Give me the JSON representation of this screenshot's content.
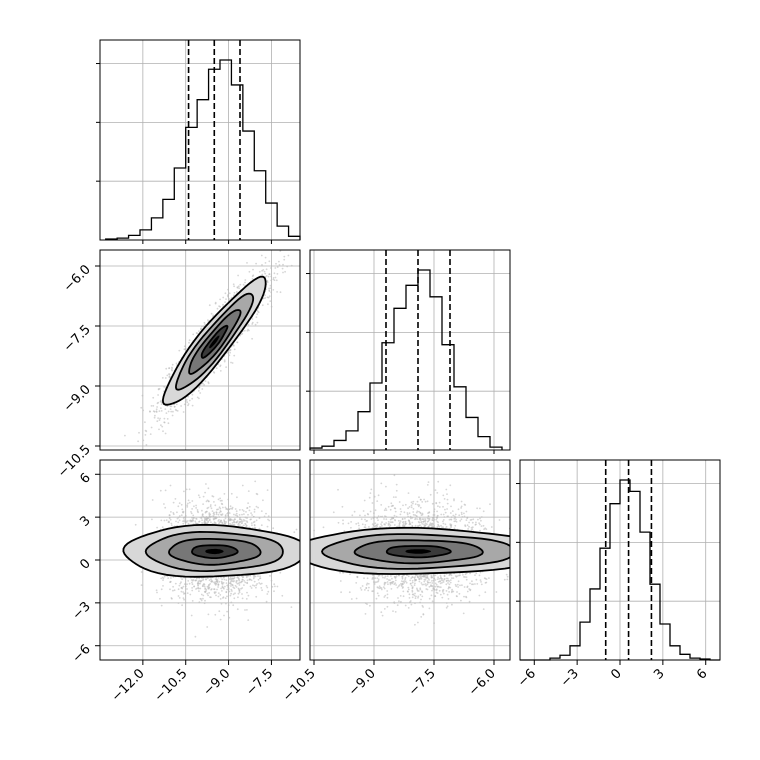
{
  "chart_data": {
    "type": "corner",
    "title": "",
    "params": [
      {
        "index": 0,
        "range": [
          -13.5,
          -6.5
        ],
        "ticks": [
          -12.0,
          -10.5,
          -9.0,
          -7.5
        ],
        "tick_labels": [
          "−12.0",
          "−10.5",
          "−9.0",
          "−7.5"
        ],
        "quantiles": [
          -10.4,
          -9.5,
          -8.6
        ]
      },
      {
        "index": 1,
        "range": [
          -10.6,
          -5.6
        ],
        "ticks": [
          -10.5,
          -9.0,
          -7.5,
          -6.0
        ],
        "tick_labels": [
          "−10.5",
          "−9.0",
          "−7.5",
          "−6.0"
        ],
        "quantiles": [
          -8.7,
          -7.9,
          -7.1
        ]
      },
      {
        "index": 2,
        "range": [
          -7,
          7
        ],
        "ticks": [
          -6,
          -3,
          0,
          3,
          6
        ],
        "tick_labels": [
          "−6",
          "−3",
          "0",
          "3",
          "6"
        ],
        "quantiles": [
          -1.0,
          0.6,
          2.2
        ]
      }
    ],
    "histograms": [
      {
        "param": 0,
        "bins": [
          -13.3,
          -12.9,
          -12.5,
          -12.1,
          -11.7,
          -11.3,
          -10.9,
          -10.5,
          -10.1,
          -9.7,
          -9.3,
          -8.9,
          -8.5,
          -8.1,
          -7.7,
          -7.3,
          -6.9,
          -6.5
        ],
        "counts": [
          1,
          2,
          5,
          11,
          24,
          44,
          78,
          122,
          152,
          185,
          195,
          168,
          118,
          75,
          40,
          15,
          4
        ]
      },
      {
        "param": 1,
        "bins": [
          -10.6,
          -10.3,
          -10.0,
          -9.7,
          -9.4,
          -9.1,
          -8.8,
          -8.5,
          -8.2,
          -7.9,
          -7.6,
          -7.3,
          -7.0,
          -6.7,
          -6.4,
          -6.1,
          -5.8
        ],
        "counts": [
          2,
          4,
          10,
          20,
          40,
          70,
          112,
          148,
          172,
          188,
          160,
          110,
          66,
          34,
          14,
          3
        ]
      },
      {
        "param": 2,
        "bins": [
          -7.0,
          -6.3,
          -5.6,
          -4.9,
          -4.2,
          -3.5,
          -2.8,
          -2.1,
          -1.4,
          -0.7,
          0.0,
          0.7,
          1.4,
          2.1,
          2.8,
          3.5,
          4.2,
          4.9,
          5.6,
          6.3,
          7.0
        ],
        "counts": [
          0,
          0,
          0,
          2,
          5,
          15,
          40,
          75,
          118,
          165,
          190,
          178,
          135,
          80,
          38,
          15,
          6,
          2,
          1,
          0
        ]
      }
    ],
    "pairs": [
      {
        "x_param": 0,
        "y_param": 1,
        "mean": [
          -9.5,
          -7.9
        ],
        "std": [
          0.9,
          0.8
        ],
        "correlation": 0.92,
        "contour_levels_sigma": [
          0.5,
          1.0,
          1.5,
          2.0
        ]
      },
      {
        "x_param": 0,
        "y_param": 2,
        "mean": [
          -9.5,
          0.6
        ],
        "std": [
          0.9,
          1.6
        ],
        "correlation": 0.0,
        "contour_levels_sigma": [
          0.5,
          1.0,
          1.5,
          2.0
        ]
      },
      {
        "x_param": 1,
        "y_param": 2,
        "mean": [
          -7.9,
          0.6
        ],
        "std": [
          0.8,
          1.6
        ],
        "correlation": 0.0,
        "contour_levels_sigma": [
          0.5,
          1.0,
          1.5,
          2.0
        ]
      }
    ],
    "grid": true,
    "colors": {
      "line": "#000000",
      "grid": "#b0b0b0",
      "points": "#bbbbbb"
    }
  }
}
